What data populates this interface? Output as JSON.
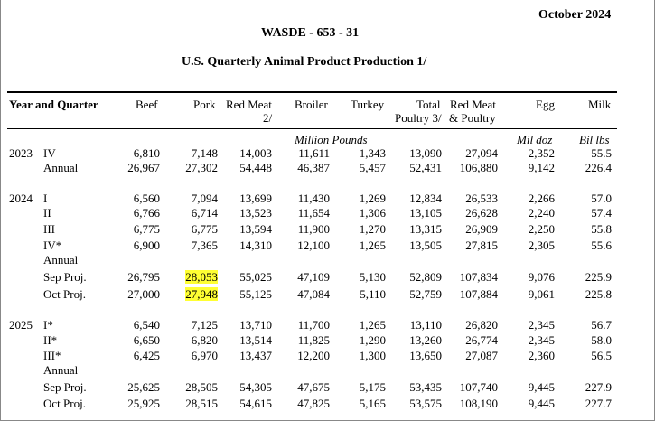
{
  "header": {
    "date": "October 2024",
    "report": "WASDE - 653 - 31",
    "title": "U.S. Quarterly Animal Product Production  1/"
  },
  "columns": {
    "year_quarter": "Year and Quarter",
    "beef": "Beef",
    "pork": "Pork",
    "red_meat": "Red Meat",
    "red_meat_note": "2/",
    "broiler": "Broiler",
    "turkey": "Turkey",
    "total": "Total",
    "total_poultry": "Poultry 3/",
    "red_meat_poultry_1": "Red Meat",
    "red_meat_poultry_2": "& Poultry",
    "egg": "Egg",
    "milk": "Milk"
  },
  "units": {
    "million_pounds": "Million Pounds",
    "mil_doz": "Mil doz",
    "bil_lbs": "Bil lbs"
  },
  "rows": [
    {
      "year": "2023",
      "label": "IV",
      "values": [
        "6,810",
        "7,148",
        "14,003",
        "11,611",
        "1,343",
        "13,090",
        "27,094",
        "2,352",
        "55.5"
      ],
      "hl": []
    },
    {
      "year": "",
      "label": "Annual",
      "values": [
        "26,967",
        "27,302",
        "54,448",
        "46,387",
        "5,457",
        "52,431",
        "106,880",
        "9,142",
        "226.4"
      ],
      "hl": []
    },
    {
      "year": "2024",
      "label": "I",
      "values": [
        "6,560",
        "7,094",
        "13,699",
        "11,430",
        "1,269",
        "12,834",
        "26,533",
        "2,266",
        "57.0"
      ],
      "hl": []
    },
    {
      "year": "",
      "label": "II",
      "values": [
        "6,766",
        "6,714",
        "13,523",
        "11,654",
        "1,306",
        "13,105",
        "26,628",
        "2,240",
        "57.4"
      ],
      "hl": []
    },
    {
      "year": "",
      "label": "III",
      "values": [
        "6,775",
        "6,775",
        "13,594",
        "11,900",
        "1,270",
        "13,315",
        "26,909",
        "2,250",
        "55.8"
      ],
      "hl": []
    },
    {
      "year": "",
      "label": "IV*",
      "values": [
        "6,900",
        "7,365",
        "14,310",
        "12,100",
        "1,265",
        "13,505",
        "27,815",
        "2,305",
        "55.6"
      ],
      "hl": []
    },
    {
      "year": "",
      "label": "Annual",
      "values": [
        "",
        "",
        "",
        "",
        "",
        "",
        "",
        "",
        ""
      ],
      "hl": []
    },
    {
      "year": "",
      "label": "Sep Proj.",
      "values": [
        "26,795",
        "28,053",
        "55,025",
        "47,109",
        "5,130",
        "52,809",
        "107,834",
        "9,076",
        "225.9"
      ],
      "hl": [
        1
      ]
    },
    {
      "year": "",
      "label": "Oct Proj.",
      "values": [
        "27,000",
        "27,948",
        "55,125",
        "47,084",
        "5,110",
        "52,759",
        "107,884",
        "9,061",
        "225.8"
      ],
      "hl": [
        1
      ]
    },
    {
      "year": "2025",
      "label": "I*",
      "values": [
        "6,540",
        "7,125",
        "13,710",
        "11,700",
        "1,265",
        "13,110",
        "26,820",
        "2,345",
        "56.7"
      ],
      "hl": []
    },
    {
      "year": "",
      "label": "II*",
      "values": [
        "6,650",
        "6,820",
        "13,514",
        "11,825",
        "1,290",
        "13,260",
        "26,774",
        "2,345",
        "58.0"
      ],
      "hl": []
    },
    {
      "year": "",
      "label": "III*",
      "values": [
        "6,425",
        "6,970",
        "13,437",
        "12,200",
        "1,300",
        "13,650",
        "27,087",
        "2,360",
        "56.5"
      ],
      "hl": []
    },
    {
      "year": "",
      "label": "Annual",
      "values": [
        "",
        "",
        "",
        "",
        "",
        "",
        "",
        "",
        ""
      ],
      "hl": []
    },
    {
      "year": "",
      "label": "Sep Proj.",
      "values": [
        "25,625",
        "28,505",
        "54,305",
        "47,675",
        "5,175",
        "53,435",
        "107,740",
        "9,445",
        "227.9"
      ],
      "hl": []
    },
    {
      "year": "",
      "label": "Oct Proj.",
      "values": [
        "25,925",
        "28,515",
        "54,615",
        "47,825",
        "5,165",
        "53,575",
        "108,190",
        "9,445",
        "227.7"
      ],
      "hl": []
    }
  ]
}
